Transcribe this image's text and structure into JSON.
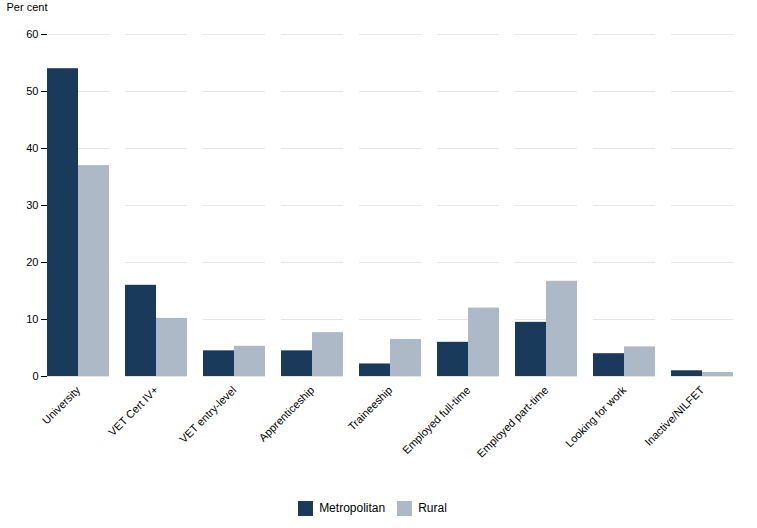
{
  "chart_data": {
    "type": "bar",
    "categories": [
      "University",
      "VET Cert IV+",
      "VET entry-level",
      "Apprenticeship",
      "Traineeship",
      "Employed full-time",
      "Employed part-time",
      "Looking for work",
      "Inactive/NILFET"
    ],
    "series": [
      {
        "name": "Metropolitan",
        "color": "#1a3a5c",
        "values": [
          54,
          16,
          4.5,
          4.5,
          2.2,
          6,
          9.5,
          4,
          1
        ]
      },
      {
        "name": "Rural",
        "color": "#adb9c7",
        "values": [
          37,
          10.2,
          5.3,
          7.7,
          6.5,
          12,
          16.7,
          5.2,
          0.7
        ]
      }
    ],
    "ylabel": "Per cent",
    "ylim": [
      0,
      60
    ],
    "yticks": [
      0,
      10,
      20,
      30,
      40,
      50,
      60
    ],
    "grid": true,
    "legend": "bottom"
  }
}
